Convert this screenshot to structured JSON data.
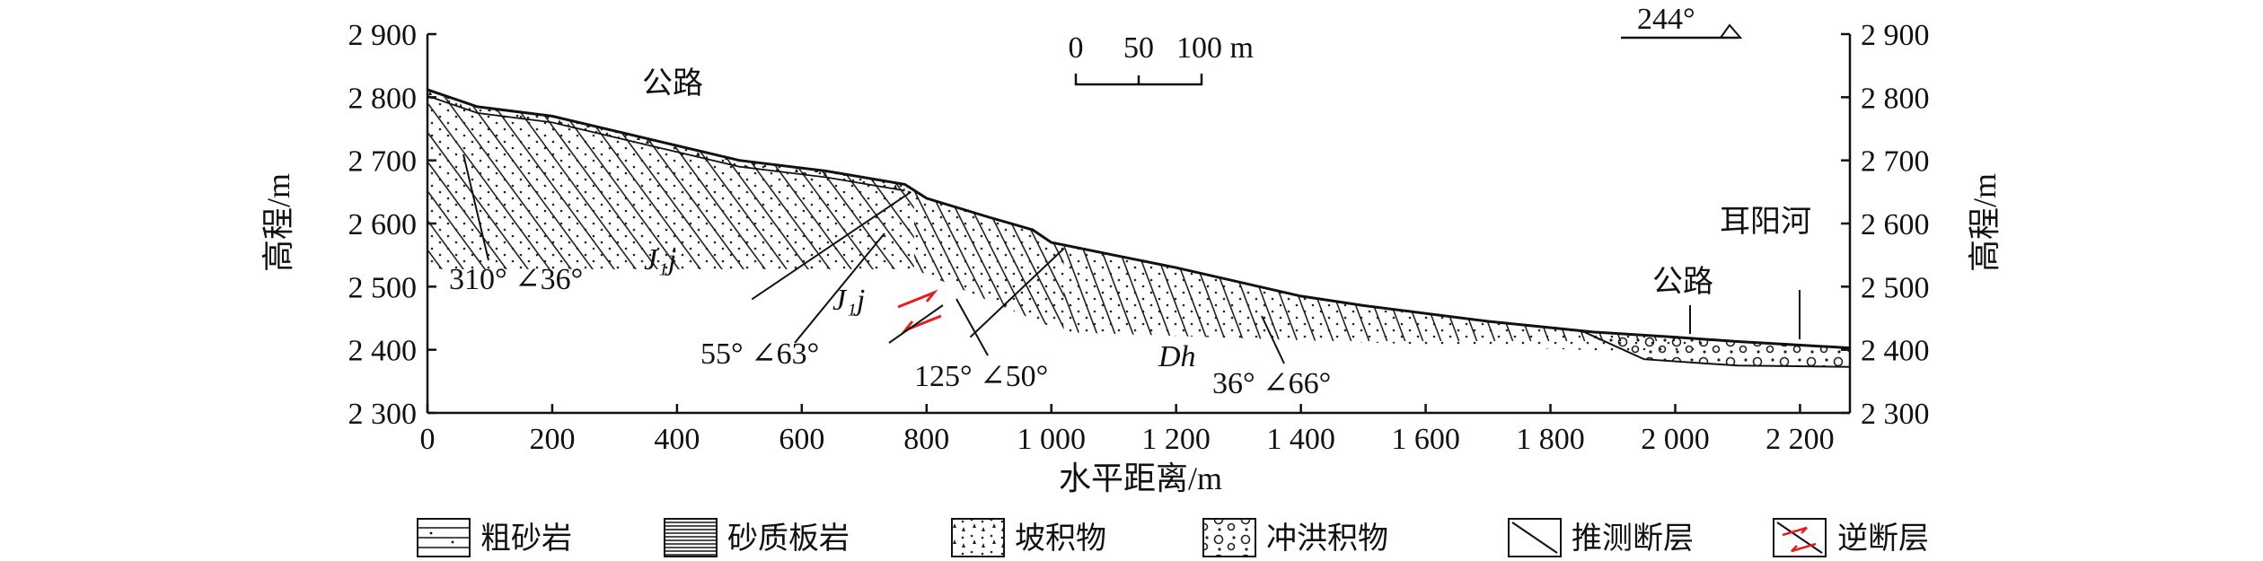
{
  "chart_data": {
    "type": "cross-section",
    "xlabel": "水平距离/m",
    "ylabel": "高程/m",
    "xlim": [
      0,
      2280
    ],
    "ylim": [
      2300,
      2900
    ],
    "x_ticks": [
      "0",
      "200",
      "400",
      "600",
      "800",
      "1 000",
      "1 200",
      "1 400",
      "1 600",
      "1 800",
      "2 000",
      "2 200"
    ],
    "y_ticks": [
      "2 300",
      "2 400",
      "2 500",
      "2 600",
      "2 700",
      "2 800",
      "2 900"
    ],
    "ground_profile": [
      [
        0,
        2812
      ],
      [
        80,
        2785
      ],
      [
        200,
        2770
      ],
      [
        350,
        2735
      ],
      [
        500,
        2700
      ],
      [
        640,
        2683
      ],
      [
        765,
        2662
      ],
      [
        800,
        2640
      ],
      [
        900,
        2610
      ],
      [
        970,
        2590
      ],
      [
        1000,
        2570
      ],
      [
        1100,
        2550
      ],
      [
        1200,
        2530
      ],
      [
        1400,
        2485
      ],
      [
        1500,
        2470
      ],
      [
        1700,
        2445
      ],
      [
        1870,
        2428
      ],
      [
        2000,
        2420
      ],
      [
        2100,
        2413
      ],
      [
        2280,
        2403
      ]
    ],
    "annotations": {
      "road_1": "公路",
      "road_2": "公路",
      "river": "耳阳河",
      "formation_jj_1": "J₁j",
      "formation_jj_2": "J₁j",
      "formation_dh": "Dh",
      "attitude_1": "310° ∠36°",
      "attitude_2": "55° ∠63°",
      "attitude_3": "125° ∠50°",
      "attitude_4": "36° ∠66°",
      "direction": "244°"
    },
    "scale_bar": {
      "labels": [
        "0",
        "50",
        "100 m"
      ]
    }
  },
  "legend": [
    {
      "key": "coarse-sandstone",
      "label": "粗砂岩"
    },
    {
      "key": "sandy-slate",
      "label": "砂质板岩"
    },
    {
      "key": "colluvium",
      "label": "坡积物"
    },
    {
      "key": "alluvial",
      "label": "冲洪积物"
    },
    {
      "key": "inferred-fault",
      "label": "推测断层"
    },
    {
      "key": "reverse-fault",
      "label": "逆断层"
    }
  ],
  "colors": {
    "fault_red": "#e02020",
    "ink": "#111111"
  }
}
